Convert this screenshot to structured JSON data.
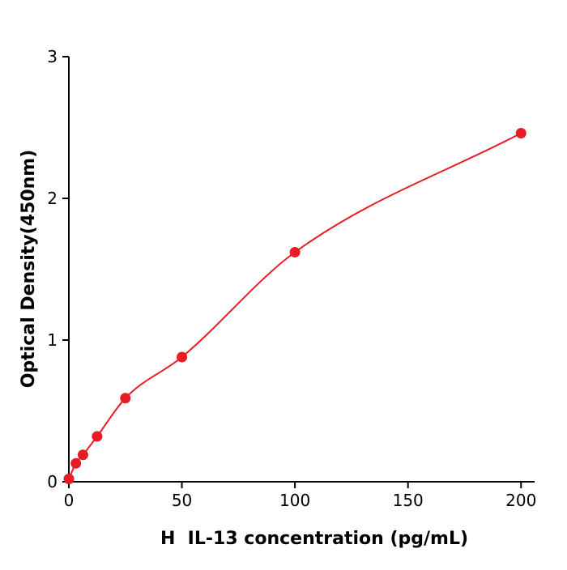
{
  "chart_data": {
    "type": "scatter",
    "title": "",
    "xlabel": "H  IL-13 concentration (pg/mL)",
    "ylabel": "Optical Density(450nm)",
    "x": [
      0,
      3.125,
      6.25,
      12.5,
      25,
      50,
      100,
      200
    ],
    "y": [
      0.02,
      0.13,
      0.19,
      0.32,
      0.59,
      0.88,
      1.62,
      2.46
    ],
    "fit_line": true,
    "xlim": [
      0,
      206
    ],
    "ylim": [
      0,
      3
    ],
    "xticks": [
      0,
      50,
      100,
      150,
      200
    ],
    "yticks": [
      0,
      1,
      2,
      3
    ],
    "grid": false,
    "legend_position": "none",
    "line_color": "#e81c24",
    "marker_color": "#e81c24",
    "axis_color": "#000000",
    "background_color": "#ffffff"
  }
}
